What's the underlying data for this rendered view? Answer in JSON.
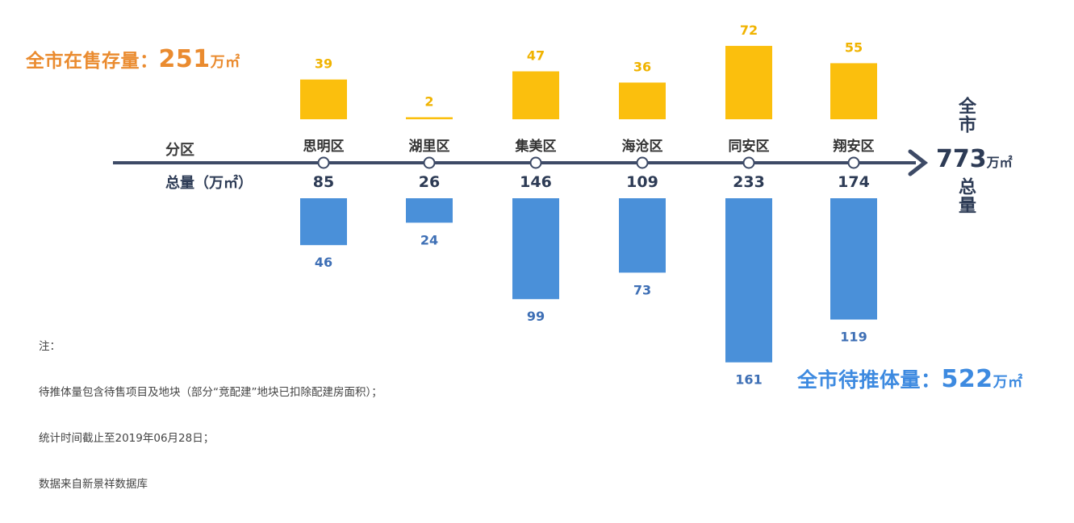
{
  "inventory_title": {
    "label": "全市在售存量：",
    "value": "251",
    "unit": "万㎡"
  },
  "pending_title": {
    "label": "全市待推体量：",
    "value": "522",
    "unit": "万㎡"
  },
  "row_labels": {
    "district": "分区",
    "total": "总量（万㎡）"
  },
  "city_total": {
    "top": "全市",
    "value": "773",
    "unit": "万㎡",
    "bottom": "总量"
  },
  "notes": [
    "注：",
    "待推体量包含待售项目及地块（部分“竞配建”地块已扣除配建房面积）；",
    "统计时间截止至2019年06月28日；",
    "数据来自新景祥数据库"
  ],
  "colors": {
    "inventory": "#fbbf0d",
    "pending": "#4a90d9",
    "axis": "#3d4a66",
    "inv_text": "#f0b300",
    "pend_text": "#3e6fb5"
  },
  "chart_data": {
    "type": "bar",
    "categories": [
      "思明区",
      "湖里区",
      "集美区",
      "海沧区",
      "同安区",
      "翔安区"
    ],
    "totals": [
      85,
      26,
      146,
      109,
      233,
      174
    ],
    "series": [
      {
        "name": "在售存量",
        "values": [
          39,
          2,
          47,
          36,
          72,
          55
        ]
      },
      {
        "name": "待推体量",
        "values": [
          46,
          24,
          99,
          73,
          161,
          119
        ]
      }
    ]
  }
}
